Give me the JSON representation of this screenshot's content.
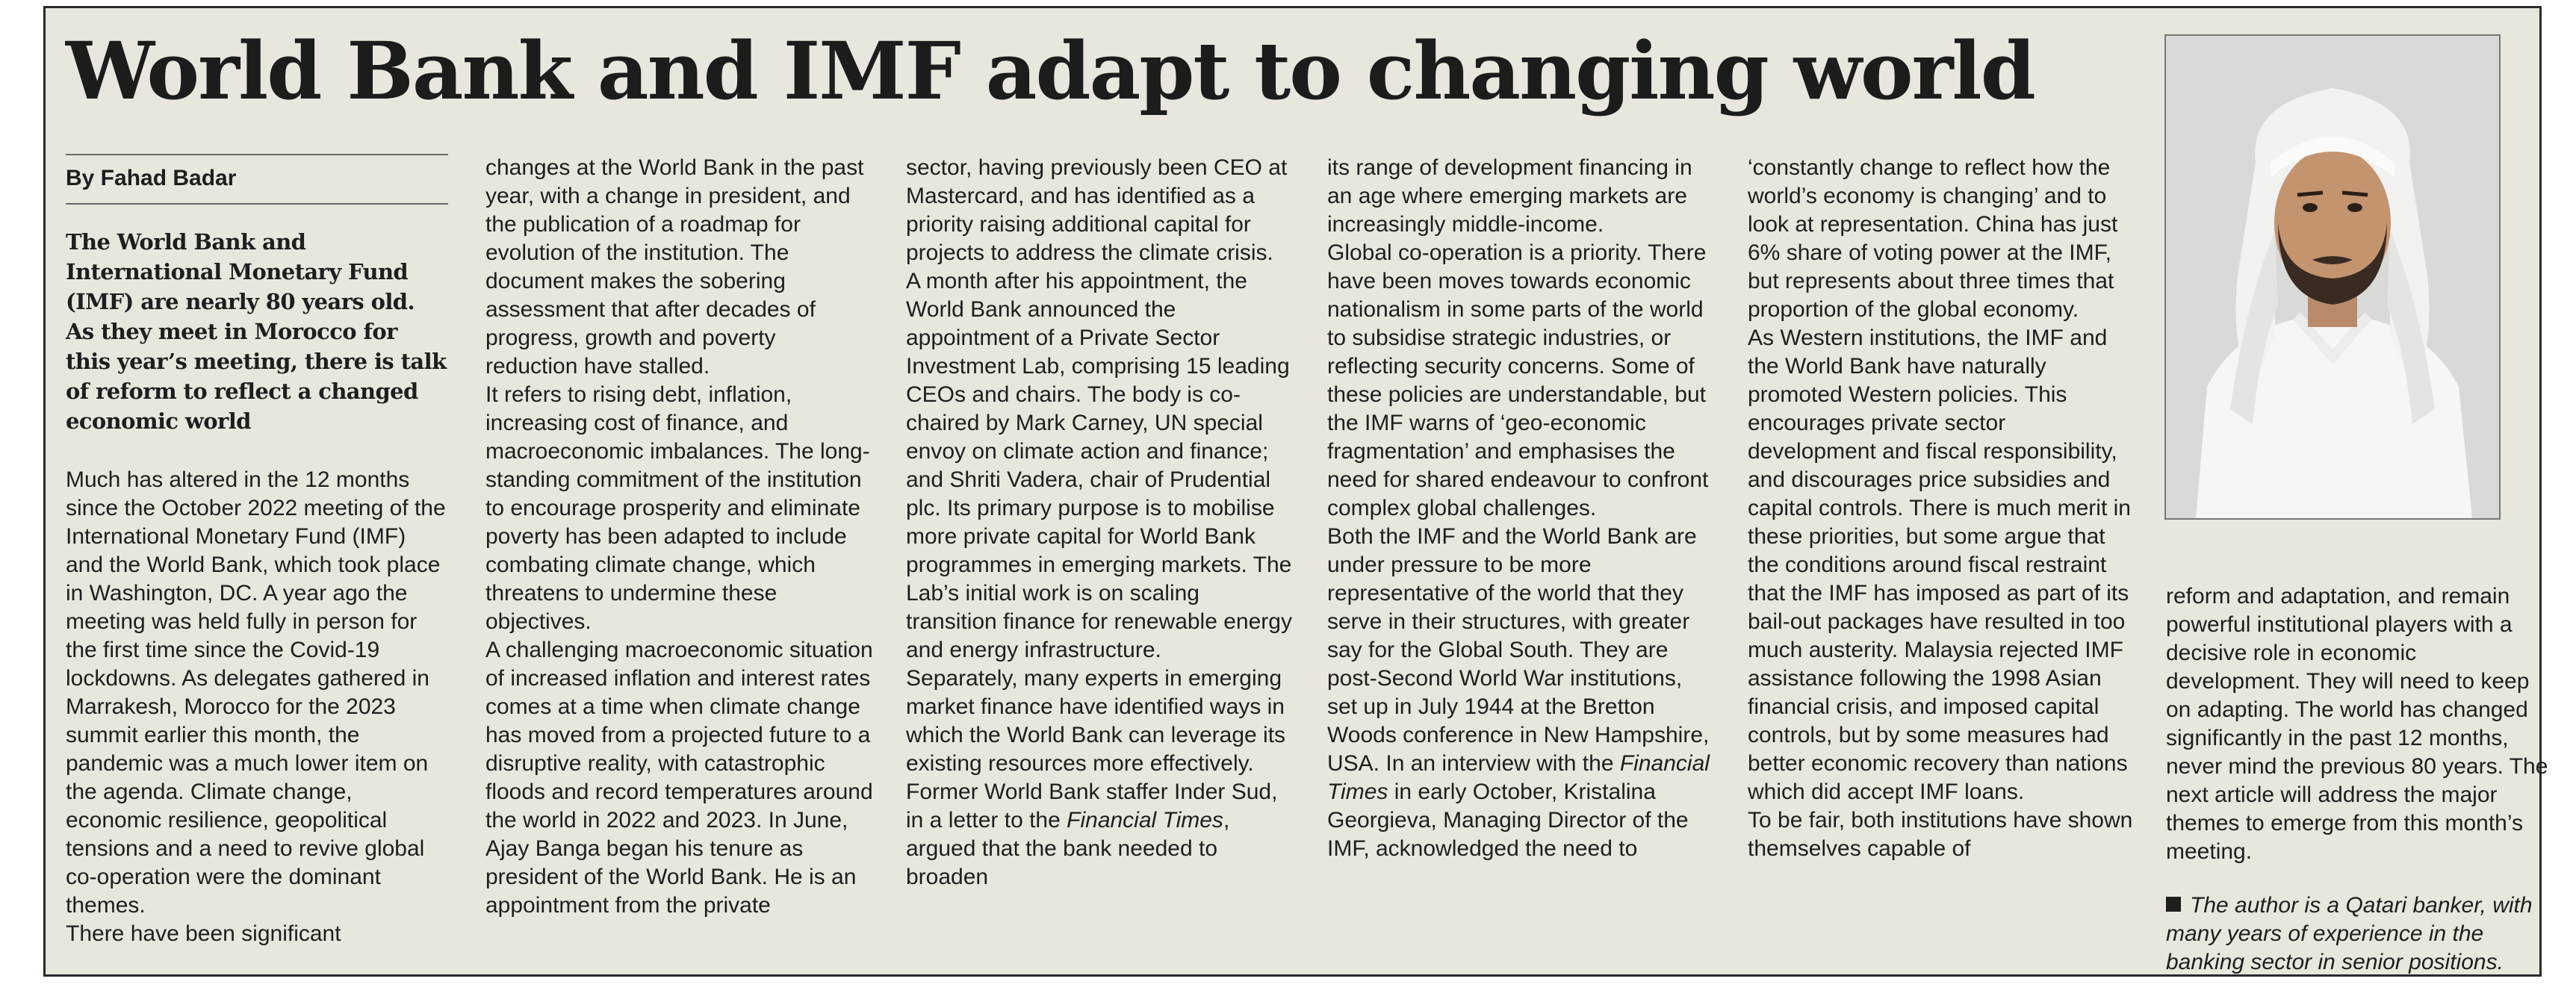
{
  "article": {
    "headline": "World Bank and IMF adapt to changing world",
    "byline": "By Fahad Badar",
    "standfirst": "The World Bank and International Monetary Fund (IMF) are nearly 80 years old. As they meet in Morocco for this year’s meeting, there is talk of reform to reflect a changed economic world",
    "col1": {
      "p1": "Much has altered in the 12 months since the October 2022 meeting of the International Monetary Fund (IMF) and the World Bank, which took place in Washington, DC. A year ago the meeting was held fully in person for the first time since the Covid-19 lockdowns. As delegates gathered in Marrakesh, Morocco for the 2023 summit earlier this month, the pandemic was a much lower item on the agenda. Climate change, economic resilience, geopolitical tensions and a need to revive global co-operation were the dominant themes.",
      "p2": "There have been significant"
    },
    "col2": {
      "p1": "changes at the World Bank in the past year, with a change in president, and the publication of a roadmap for evolution of the institution. The document makes the sobering assessment that after decades of progress, growth and poverty reduction have stalled.",
      "p2": "It refers to rising debt, inflation, increasing cost of finance, and macroeconomic imbalances. The long-standing commitment of the institution to encourage prosperity and eliminate poverty has been adapted to include combating climate change, which threatens to undermine these objectives.",
      "p3": "A challenging macroeconomic situation of increased inflation and interest rates comes at a time when climate change has moved from a projected future to a disruptive reality, with catastrophic floods and record temperatures around the world in 2022 and 2023. In June, Ajay Banga began his tenure as president of the World Bank. He is an appointment from the private"
    },
    "col3": {
      "p1": "sector, having previously been CEO at Mastercard, and has identified as a priority raising additional capital for projects to address the climate crisis.",
      "p2": "A month after his appointment, the World Bank announced the appointment of a Private Sector Investment Lab, comprising 15 leading CEOs and chairs. The body is co-chaired by Mark Carney, UN special envoy on climate action and finance; and Shriti Vadera, chair of Prudential plc. Its primary purpose is to mobilise more private capital for World Bank programmes in emerging markets. The Lab’s initial work is on scaling transition finance for renewable energy and energy infrastructure.",
      "p3_a": "Separately, many experts in emerging market finance have identified ways in which the World Bank can leverage its existing resources more effectively. Former World Bank staffer Inder Sud, in a letter to the ",
      "p3_italic": "Financial Times",
      "p3_b": ", argued that the bank needed to broaden"
    },
    "col4": {
      "p1": "its range of development financing in an age where emerging markets are increasingly middle-income.",
      "p2": "Global co-operation is a priority. There have been moves towards economic nationalism in some parts of the world to subsidise strategic industries, or reflecting security concerns. Some of these policies are understandable, but the IMF warns of ‘geo-economic fragmentation’ and emphasises the need for shared endeavour to confront complex global challenges.",
      "p3_a": "Both the IMF and the World Bank are under pressure to be more representative of the world that they serve in their structures, with greater say for the Global South. They are post-Second World War institutions, set up in July 1944 at the Bretton Woods conference in New Hampshire, USA. In an interview with the ",
      "p3_italic": "Financial Times",
      "p3_b": " in early October, Kristalina Georgieva, Managing Director of the IMF, acknowledged the need to"
    },
    "col5": {
      "p1": "‘constantly change to reflect how the world’s economy is changing’ and to look at representation. China has just 6% share of voting power at the IMF, but represents about three times that proportion of the global economy.",
      "p2": "As Western institutions, the IMF and the World Bank have naturally promoted Western policies. This encourages private sector development and fiscal responsibility, and discourages price subsidies and capital controls. There is much merit in these priorities, but some argue that the conditions around fiscal restraint that the IMF has imposed as part of its bail-out packages have resulted in too much austerity. Malaysia rejected IMF assistance following the 1998 Asian financial crisis, and imposed capital controls, but by some measures had better economic recovery than nations which did accept IMF loans.",
      "p3": "To be fair, both institutions have shown themselves capable of"
    },
    "col6": {
      "p1": "reform and adaptation, and remain powerful institutional players with a decisive role in economic development. They will need to keep on adapting. The world has changed significantly in the past 12 months, never mind the previous 80 years. The next article will address the major themes to emerge from this month’s meeting.",
      "note": "The author is a Qatari banker, with many years of experience in the banking sector in senior positions."
    }
  },
  "colors": {
    "background": "#e9e6dd",
    "text": "#1e1e1e"
  },
  "icons": {
    "note_bullet": "black-square"
  }
}
